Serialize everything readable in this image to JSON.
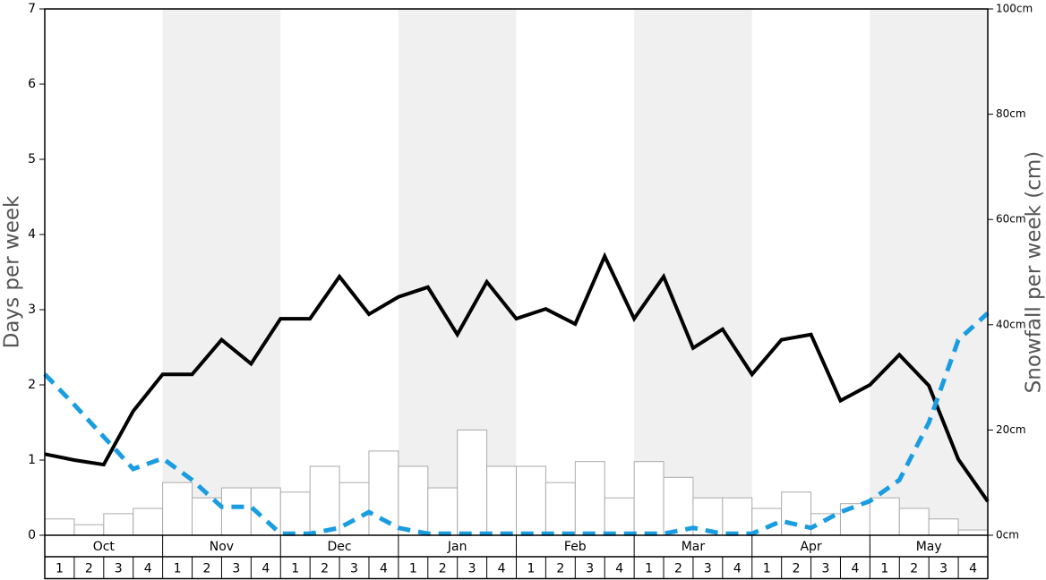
{
  "chart_data": {
    "type": "combo",
    "y_label": "Days per week",
    "y2_label": "Snowfall per week (cm)",
    "months": [
      "Oct",
      "Nov",
      "Dec",
      "Jan",
      "Feb",
      "Mar",
      "Apr",
      "May"
    ],
    "weeks": [
      "1",
      "2",
      "3",
      "4"
    ],
    "shaded_color": "#f0f0f0",
    "ylim": [
      0,
      7
    ],
    "yticks": [
      0,
      1,
      2,
      3,
      4,
      5,
      6,
      7
    ],
    "y2lim": [
      0,
      100
    ],
    "y2ticks": [
      {
        "value": 0,
        "label": "0cm"
      },
      {
        "value": 20,
        "label": "20cm"
      },
      {
        "value": 40,
        "label": "40cm"
      },
      {
        "value": 60,
        "label": "60cm"
      },
      {
        "value": 80,
        "label": "80cm"
      },
      {
        "value": 100,
        "label": "100cm"
      }
    ],
    "series": [
      {
        "kind": "bar",
        "axis": "y2",
        "color": "#ffffff",
        "edge_color": "#aaaaaa",
        "values": [
          3.1,
          2,
          4.1,
          5.1,
          10,
          7.1,
          9,
          9,
          8.2,
          13.1,
          10,
          16,
          13.1,
          9,
          20,
          13.1,
          13.1,
          10,
          14,
          7.1,
          14,
          11,
          7.1,
          7.1,
          5.1,
          8.2,
          4.1,
          6,
          7.1,
          5.1,
          3.1,
          1
        ]
      },
      {
        "kind": "line",
        "axis": "y",
        "color": "#000000",
        "dashed": false,
        "values": [
          1.08,
          1.0,
          0.94,
          1.65,
          2.14,
          2.14,
          2.6,
          2.28,
          2.88,
          2.88,
          3.44,
          2.94,
          3.17,
          3.3,
          2.67,
          3.37,
          2.88,
          3.01,
          2.81,
          3.71,
          2.88,
          3.44,
          2.49,
          2.74,
          2.14,
          2.6,
          2.67,
          1.79,
          2.0,
          2.4,
          1.99,
          1.01,
          0.45
        ]
      },
      {
        "kind": "line",
        "axis": "y2",
        "color": "#1a9de0",
        "dashed": true,
        "values": [
          30.6,
          24.8,
          18.7,
          12.6,
          14.6,
          10.5,
          5.4,
          5.4,
          0.3,
          0.3,
          1.4,
          4.4,
          1.4,
          0.3,
          0.3,
          0.3,
          0.3,
          0.3,
          0.3,
          0.3,
          0.3,
          0.3,
          1.4,
          0.3,
          0.3,
          2.7,
          1.4,
          4.4,
          6.5,
          10.5,
          21.4,
          37.1,
          42.2
        ]
      }
    ]
  }
}
